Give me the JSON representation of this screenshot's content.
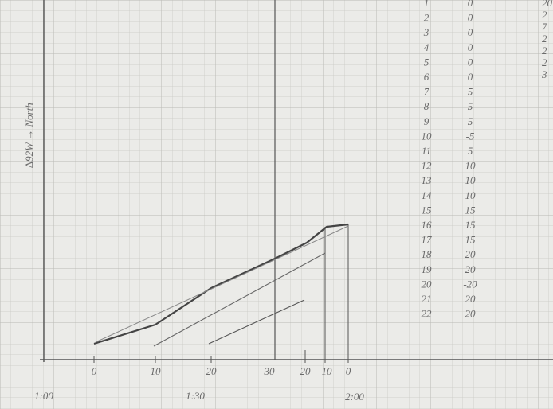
{
  "y_axis_label": "∆92W → North",
  "x_axis_labels": [
    "0",
    "10",
    "20",
    "30",
    "20",
    "10",
    "0"
  ],
  "time_labels": [
    "1:00",
    "1:30",
    "2:00"
  ],
  "table": {
    "rows": [
      [
        "1",
        "0"
      ],
      [
        "2",
        "0"
      ],
      [
        "3",
        "0"
      ],
      [
        "4",
        "0"
      ],
      [
        "5",
        "0"
      ],
      [
        "6",
        "0"
      ],
      [
        "7",
        "5"
      ],
      [
        "8",
        "5"
      ],
      [
        "9",
        "5"
      ],
      [
        "10",
        "-5"
      ],
      [
        "11",
        "5"
      ],
      [
        "12",
        "10"
      ],
      [
        "13",
        "10"
      ],
      [
        "14",
        "10"
      ],
      [
        "15",
        "15"
      ],
      [
        "16",
        "15"
      ],
      [
        "17",
        "15"
      ],
      [
        "18",
        "20"
      ],
      [
        "19",
        "20"
      ],
      [
        "20",
        "-20"
      ],
      [
        "21",
        "20"
      ],
      [
        "22",
        "20"
      ]
    ]
  },
  "side_column": [
    "20",
    "2",
    "7",
    "2",
    "2",
    "2",
    "3"
  ]
}
